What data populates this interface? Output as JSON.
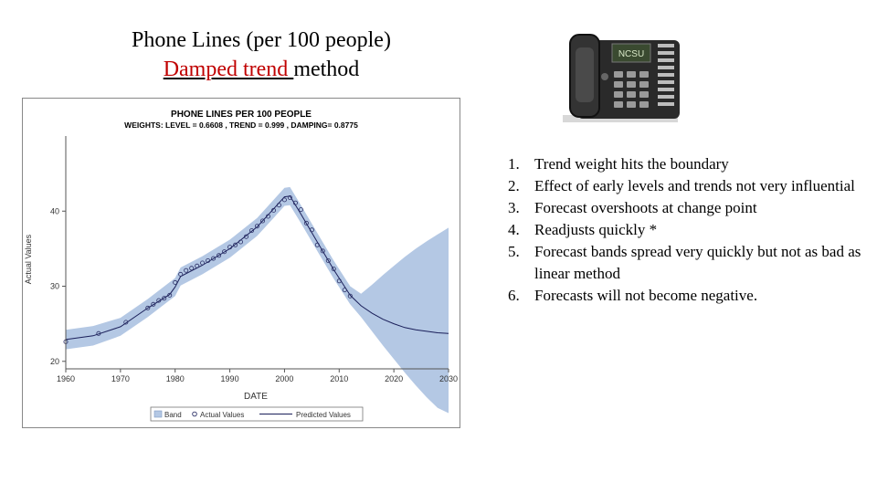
{
  "slide": {
    "title_line1": "Phone Lines (per 100 people)",
    "title_line2_link": "Damped trend ",
    "title_line2_rest": "method"
  },
  "phone_image": {
    "icon": "desk-phone-icon",
    "screen_text": "NCSU"
  },
  "notes": [
    {
      "num": "1.",
      "text": "Trend weight hits the boundary"
    },
    {
      "num": "2.",
      "text": "Effect of early levels and trends not very influential"
    },
    {
      "num": "3.",
      "text": "Forecast overshoots at change point"
    },
    {
      "num": "4.",
      "text": "Readjusts quickly  *"
    },
    {
      "num": "5.",
      "text": "Forecast bands spread very quickly but not as bad as linear method"
    },
    {
      "num": "6.",
      "text": "Forecasts will not become negative."
    }
  ],
  "chart_data": {
    "type": "line",
    "title": "PHONE LINES PER 100 PEOPLE",
    "subtitle": "WEIGHTS: LEVEL = 0.6608 , TREND = 0.999 , DAMPING= 0.8775",
    "xlabel": "DATE",
    "ylabel": "Actual Values",
    "xlim": [
      1960,
      2030
    ],
    "ylim": [
      19,
      50
    ],
    "x_ticks": [
      "1960",
      "1970",
      "1980",
      "1990",
      "2000",
      "2010",
      "2020",
      "2030"
    ],
    "y_ticks": [
      "20",
      "30",
      "40"
    ],
    "legend": [
      "Band",
      "Actual Values",
      "Predicted Values"
    ],
    "colors": {
      "band": "#b4c8e4",
      "predicted": "#1a1f5a",
      "actual_marker": "#2b2f66",
      "axis": "#555555"
    },
    "actual": {
      "x": [
        1960,
        1966,
        1971,
        1975,
        1976,
        1977,
        1978,
        1979,
        1980,
        1981,
        1982,
        1983,
        1984,
        1985,
        1986,
        1987,
        1988,
        1989,
        1990,
        1991,
        1992,
        1993,
        1994,
        1995,
        1996,
        1997,
        1998,
        1999,
        2000,
        2001,
        2002,
        2003,
        2004,
        2005,
        2006,
        2007,
        2008,
        2009,
        2010,
        2011,
        2012
      ],
      "y": [
        22.6,
        23.7,
        25.2,
        27.1,
        27.6,
        28.1,
        28.4,
        28.8,
        30.5,
        31.6,
        32.1,
        32.4,
        32.7,
        33.1,
        33.4,
        33.7,
        34.1,
        34.6,
        35.2,
        35.5,
        35.9,
        36.6,
        37.4,
        38.0,
        38.7,
        39.3,
        40.1,
        40.8,
        41.5,
        41.8,
        41.1,
        40.2,
        38.4,
        37.5,
        35.5,
        34.7,
        33.4,
        32.3,
        30.7,
        29.5,
        28.7
      ]
    },
    "predicted": {
      "x": [
        1960,
        1965,
        1970,
        1975,
        1979,
        1980,
        1981,
        1985,
        1990,
        1995,
        1998,
        2000,
        2001,
        2003,
        2006,
        2009,
        2012,
        2014,
        2016,
        2018,
        2020,
        2022,
        2024,
        2026,
        2028,
        2030
      ],
      "y": [
        22.9,
        23.4,
        24.6,
        27.1,
        28.9,
        29.9,
        31.3,
        32.8,
        35.0,
        37.9,
        40.3,
        41.9,
        42.0,
        39.6,
        35.9,
        32.2,
        28.8,
        27.4,
        26.4,
        25.6,
        25.0,
        24.5,
        24.2,
        24.0,
        23.8,
        23.7
      ]
    },
    "band": {
      "x": [
        1960,
        1965,
        1970,
        1975,
        1980,
        1981,
        1985,
        1990,
        1995,
        1998,
        2000,
        2001,
        2003,
        2006,
        2009,
        2012,
        2014,
        2016,
        2018,
        2020,
        2022,
        2024,
        2026,
        2028,
        2030
      ],
      "lower": [
        21.6,
        22.1,
        23.4,
        25.9,
        28.7,
        30.1,
        31.6,
        33.8,
        36.7,
        39.1,
        40.7,
        40.8,
        38.4,
        34.7,
        31.0,
        27.6,
        25.9,
        24.0,
        22.1,
        20.3,
        18.5,
        16.8,
        15.2,
        13.8,
        13.1
      ],
      "upper": [
        24.2,
        24.7,
        25.8,
        28.3,
        31.1,
        32.5,
        34.0,
        36.2,
        39.1,
        41.5,
        43.1,
        43.2,
        40.8,
        37.1,
        33.4,
        30.0,
        29.0,
        30.2,
        31.5,
        32.7,
        33.9,
        35.0,
        36.0,
        36.9,
        37.8
      ]
    }
  }
}
